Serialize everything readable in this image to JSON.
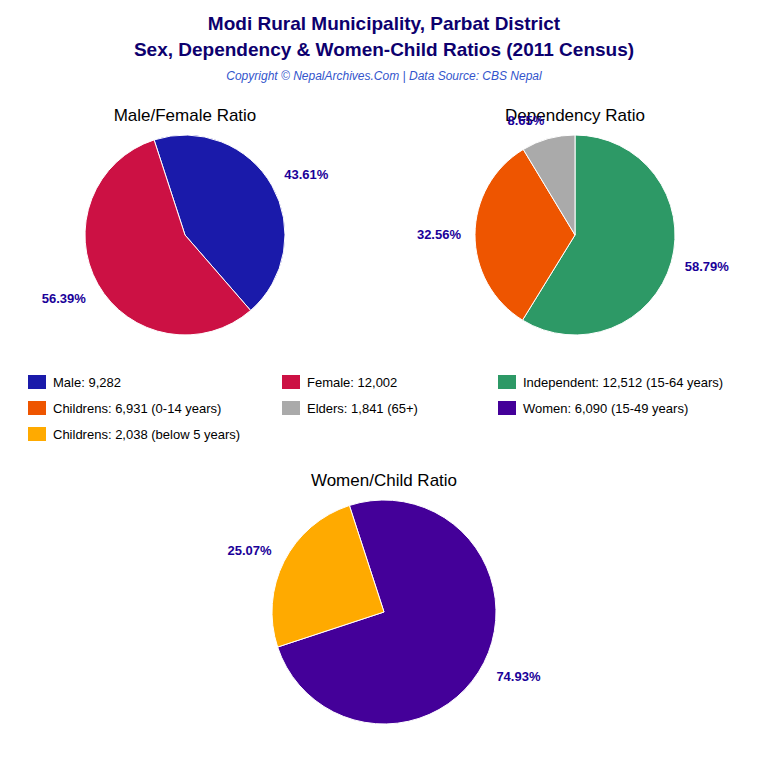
{
  "title": "Modi Rural Municipality, Parbat District",
  "subtitle": "Sex, Dependency & Women-Child Ratios (2011 Census)",
  "annotations": [
    "Copyright © NepalArchives.Com | Data Source: CBS Nepal"
  ],
  "chart_data": [
    {
      "type": "pie",
      "title": "Male/Female Ratio",
      "categories": [
        "Male: 9,282",
        "Female: 12,002"
      ],
      "values": [
        43.61,
        56.39
      ],
      "value_labels": [
        "43.61%",
        "56.39%"
      ],
      "colors": [
        "#1a1aaa",
        "#cc1144"
      ],
      "data_labels": true,
      "legend": "center"
    },
    {
      "type": "pie",
      "title": "Dependency Ratio",
      "categories": [
        "Independent: 12,512 (15-64 years)",
        "Childrens: 6,931 (0-14 years)",
        "Elders: 1,841 (65+)"
      ],
      "values": [
        58.79,
        32.56,
        8.65
      ],
      "value_labels": [
        "58.79%",
        "32.56%",
        "8.65%"
      ],
      "colors": [
        "#2d9966",
        "#ee5500",
        "#aaaaaa"
      ],
      "data_labels": true,
      "legend": "center"
    },
    {
      "type": "pie",
      "title": "Women/Child Ratio",
      "categories": [
        "Women: 6,090 (15-49 years)",
        "Childrens: 2,038 (below 5 years)"
      ],
      "values": [
        74.93,
        25.07
      ],
      "value_labels": [
        "74.93%",
        "25.07%"
      ],
      "colors": [
        "#440099",
        "#ffaa00"
      ],
      "data_labels": true,
      "legend": "center"
    }
  ]
}
